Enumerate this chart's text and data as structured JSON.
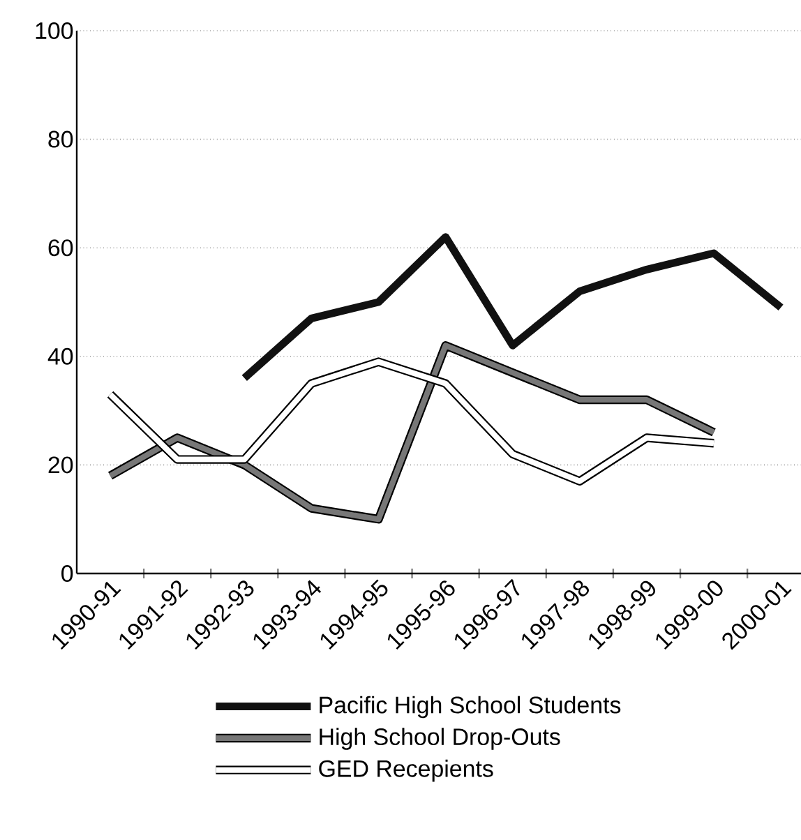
{
  "chart_data": {
    "type": "line",
    "categories": [
      "1990-91",
      "1991-92",
      "1992-93",
      "1993-94",
      "1994-95",
      "1995-96",
      "1996-97",
      "1997-98",
      "1998-99",
      "1999-00",
      "2000-01"
    ],
    "series": [
      {
        "name": "Pacific High School Students",
        "color": "#111111",
        "values": [
          null,
          null,
          36,
          47,
          50,
          62,
          42,
          52,
          56,
          59,
          49
        ]
      },
      {
        "name": "High School Drop-Outs",
        "color": "#777777",
        "values": [
          18,
          25,
          20,
          12,
          10,
          42,
          37,
          32,
          32,
          26,
          null
        ]
      },
      {
        "name": "GED Recepients",
        "color": "#ffffff",
        "values": [
          33,
          21,
          21,
          35,
          39,
          35,
          22,
          17,
          25,
          24,
          null
        ]
      }
    ],
    "ylim": [
      0,
      100
    ],
    "yticks": [
      0,
      20,
      40,
      60,
      80,
      100
    ],
    "grid": "y",
    "legend": "bottom",
    "marker": "none",
    "line_style": "solid"
  }
}
